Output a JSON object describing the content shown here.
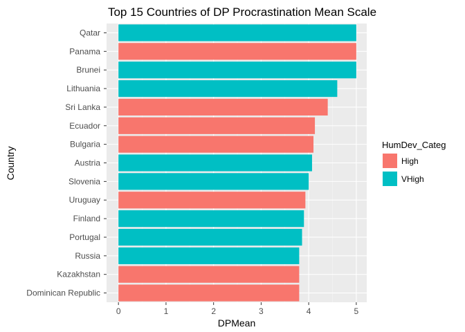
{
  "chart_data": {
    "type": "bar",
    "orientation": "horizontal",
    "title": "Top 15 Countries of DP Procrastination Mean Scale",
    "xlabel": "DPMean",
    "ylabel": "Country",
    "xlim": [
      0,
      5.2
    ],
    "x_ticks": [
      0,
      1,
      2,
      3,
      4,
      5
    ],
    "grid": true,
    "legend_position": "right",
    "legend_title": "HumDev_Categ",
    "legend": [
      {
        "name": "High",
        "color": "#f8766d"
      },
      {
        "name": "VHigh",
        "color": "#00bfc4"
      }
    ],
    "bars": [
      {
        "category": "Qatar",
        "value": 5.0,
        "group": "VHigh"
      },
      {
        "category": "Panama",
        "value": 5.0,
        "group": "High"
      },
      {
        "category": "Brunei",
        "value": 5.0,
        "group": "VHigh"
      },
      {
        "category": "Lithuania",
        "value": 4.6,
        "group": "VHigh"
      },
      {
        "category": "Sri Lanka",
        "value": 4.4,
        "group": "High"
      },
      {
        "category": "Ecuador",
        "value": 4.13,
        "group": "High"
      },
      {
        "category": "Bulgaria",
        "value": 4.1,
        "group": "High"
      },
      {
        "category": "Austria",
        "value": 4.07,
        "group": "VHigh"
      },
      {
        "category": "Slovenia",
        "value": 4.0,
        "group": "VHigh"
      },
      {
        "category": "Uruguay",
        "value": 3.93,
        "group": "High"
      },
      {
        "category": "Finland",
        "value": 3.9,
        "group": "VHigh"
      },
      {
        "category": "Portugal",
        "value": 3.86,
        "group": "VHigh"
      },
      {
        "category": "Russia",
        "value": 3.8,
        "group": "VHigh"
      },
      {
        "category": "Kazakhstan",
        "value": 3.8,
        "group": "High"
      },
      {
        "category": "Dominican Republic",
        "value": 3.8,
        "group": "High"
      }
    ]
  }
}
